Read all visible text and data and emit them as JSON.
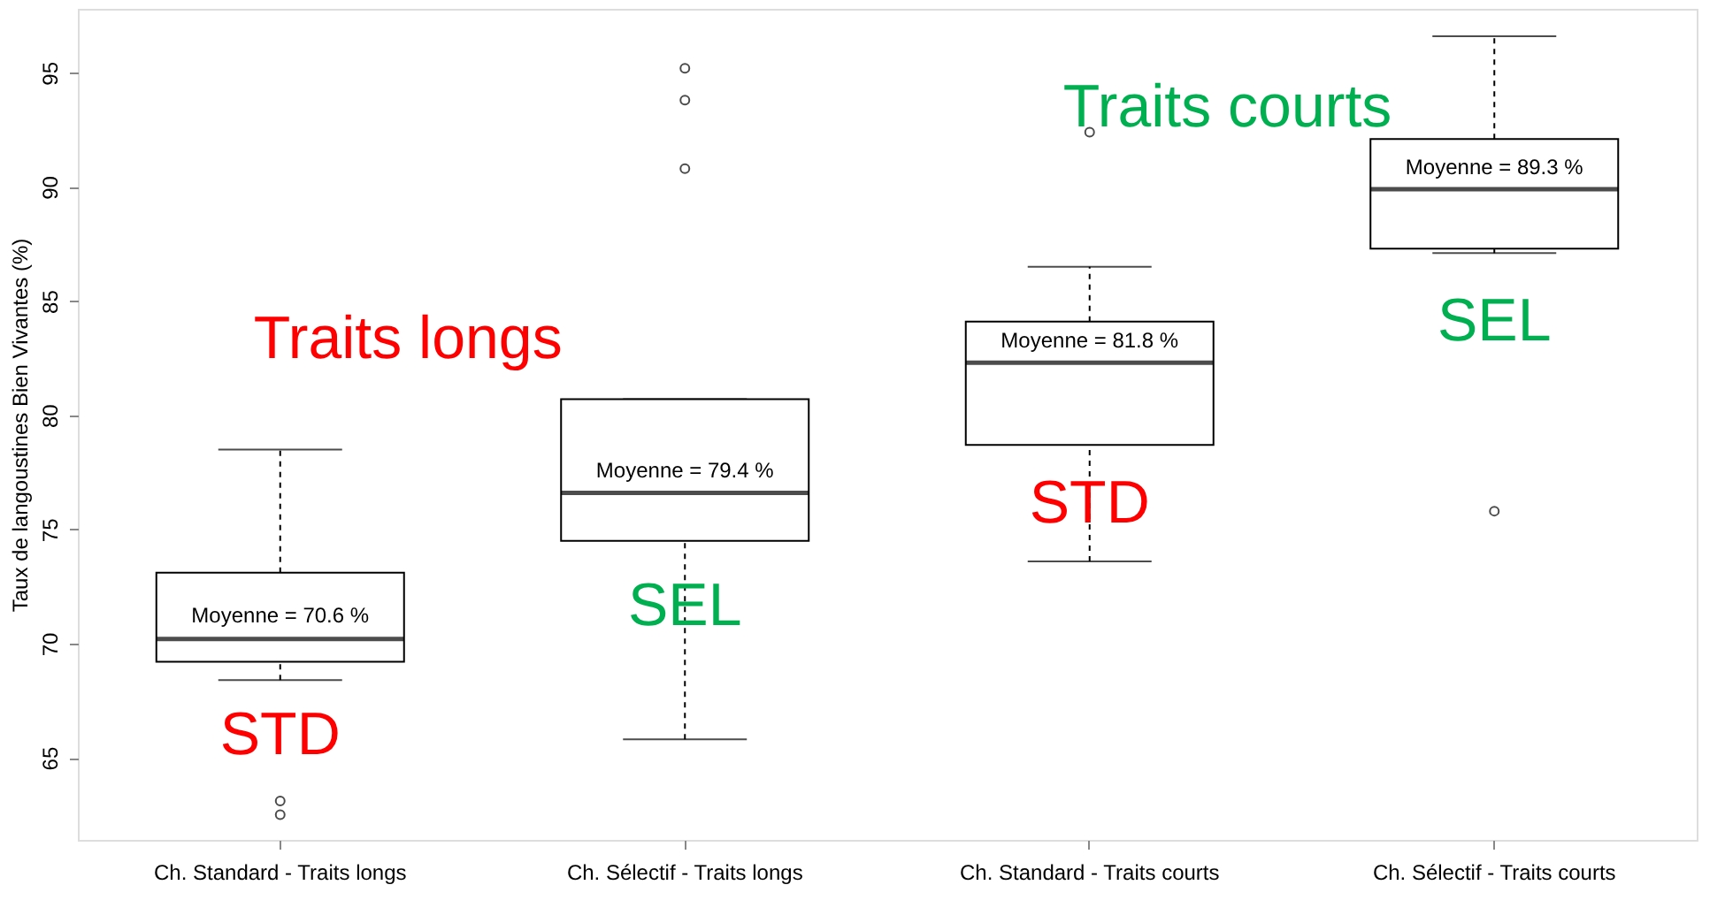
{
  "chart_data": {
    "type": "box",
    "ylabel": "Taux de langoustines Bien Vivantes (%)",
    "categories": [
      "Ch. Standard - Traits longs",
      "Ch. Sélectif - Traits longs",
      "Ch. Standard - Traits courts",
      "Ch. Sélectif - Traits courts"
    ],
    "boxes": [
      {
        "low": 68.4,
        "q1": 69.2,
        "median": 70.2,
        "q3": 73.1,
        "high": 78.5,
        "outliers": [
          63.1,
          62.5
        ]
      },
      {
        "low": 65.8,
        "q1": 74.5,
        "median": 76.6,
        "q3": 80.7,
        "high": 80.7,
        "outliers": [
          90.8,
          93.8,
          95.2
        ]
      },
      {
        "low": 73.6,
        "q1": 78.7,
        "median": 82.3,
        "q3": 84.1,
        "high": 86.5,
        "outliers": [
          92.4
        ]
      },
      {
        "low": 87.1,
        "q1": 87.3,
        "median": 89.9,
        "q3": 92.1,
        "high": 96.6,
        "outliers": [
          75.8
        ]
      }
    ],
    "ylim": [
      61.4,
      97.8
    ],
    "yticks": [
      65,
      70,
      75,
      80,
      85,
      90,
      95
    ],
    "grid": false,
    "annotations": [
      "Moyenne =  70.6 %",
      "Moyenne =  79.4 %",
      "Moyenne =  81.8 %",
      "Moyenne =  89.3 %",
      "Traits longs",
      "Traits courts",
      "STD",
      "SEL",
      "STD",
      "SEL"
    ]
  }
}
